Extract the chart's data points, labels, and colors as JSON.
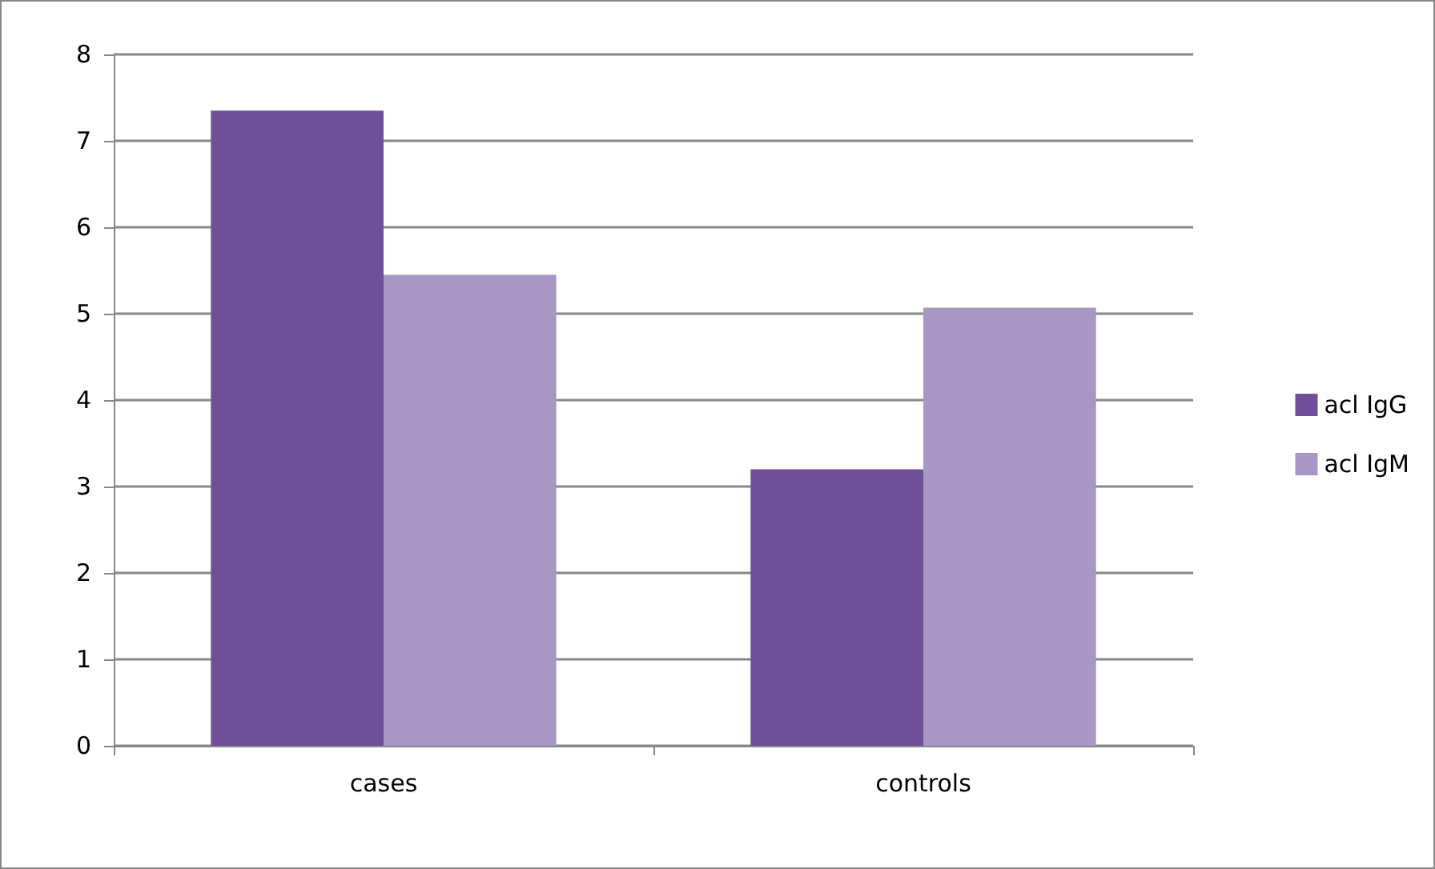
{
  "chart_data": {
    "type": "bar",
    "categories": [
      "cases",
      "controls"
    ],
    "series": [
      {
        "name": "acl IgG",
        "color": "#6f4f98",
        "values": [
          7.35,
          3.2
        ]
      },
      {
        "name": "acl IgM",
        "color": "#a897c2",
        "values": [
          5.45,
          5.07
        ]
      }
    ],
    "ylim": [
      0,
      8
    ],
    "yticks": [
      0,
      1,
      2,
      3,
      4,
      5,
      6,
      7,
      8
    ],
    "grid": "y",
    "legend": "right"
  }
}
